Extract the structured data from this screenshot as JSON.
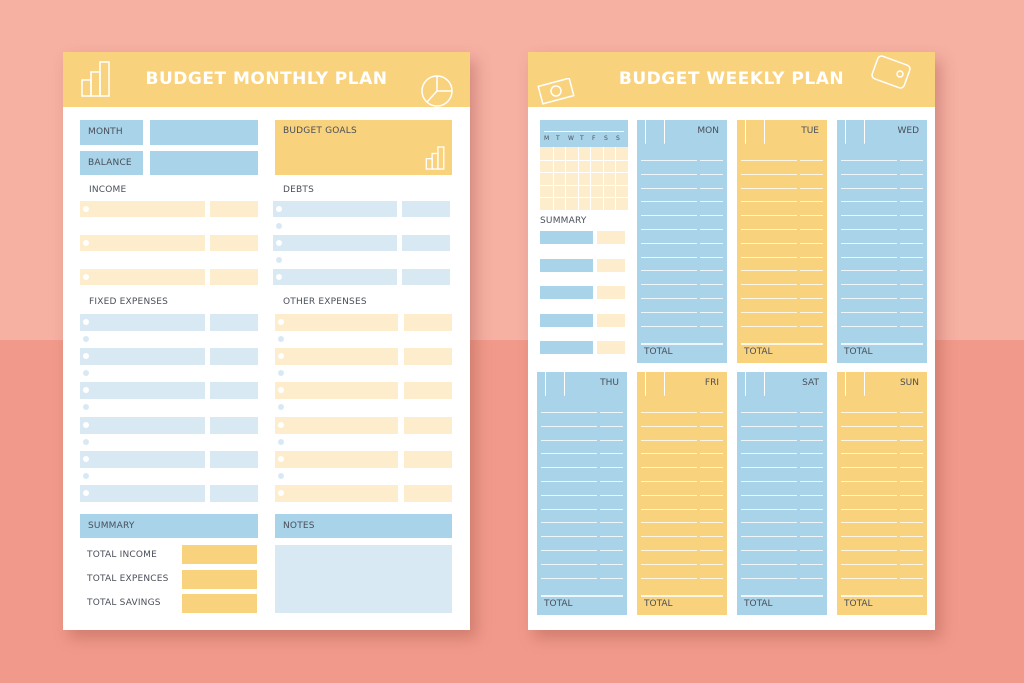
{
  "monthly": {
    "title": "BUDGET MONTHLY PLAN",
    "month_label": "MONTH",
    "balance_label": "BALANCE",
    "budget_goals_label": "BUDGET GOALS",
    "income_label": "INCOME",
    "debts_label": "DEBTS",
    "fixed_expenses_label": "FIXED EXPENSES",
    "other_expenses_label": "OTHER EXPENSES",
    "summary_label": "SUMMARY",
    "notes_label": "NOTES",
    "total_income_label": "TOTAL INCOME",
    "total_expences_label": "TOTAL EXPENCES",
    "total_savings_label": "TOTAL SAVINGS"
  },
  "weekly": {
    "title": "BUDGET WEEKLY PLAN",
    "calendar_days": [
      "M",
      "T",
      "W",
      "T",
      "F",
      "S",
      "S"
    ],
    "summary_label": "SUMMARY",
    "days": [
      {
        "name": "MON",
        "total": "TOTAL",
        "color": "#a8d3e8"
      },
      {
        "name": "TUE",
        "total": "TOTAL",
        "color": "#f9d27e"
      },
      {
        "name": "WED",
        "total": "TOTAL",
        "color": "#a8d3e8"
      },
      {
        "name": "THU",
        "total": "TOTAL",
        "color": "#a8d3e8"
      },
      {
        "name": "FRI",
        "total": "TOTAL",
        "color": "#f9d27e"
      },
      {
        "name": "SAT",
        "total": "TOTAL",
        "color": "#a8d3e8"
      },
      {
        "name": "SUN",
        "total": "TOTAL",
        "color": "#f9d27e"
      }
    ]
  },
  "colors": {
    "background_top": "#f6b1a3",
    "background_bottom": "#f19a8b",
    "yellow": "#f9d27e",
    "blue": "#a8d3e8"
  }
}
